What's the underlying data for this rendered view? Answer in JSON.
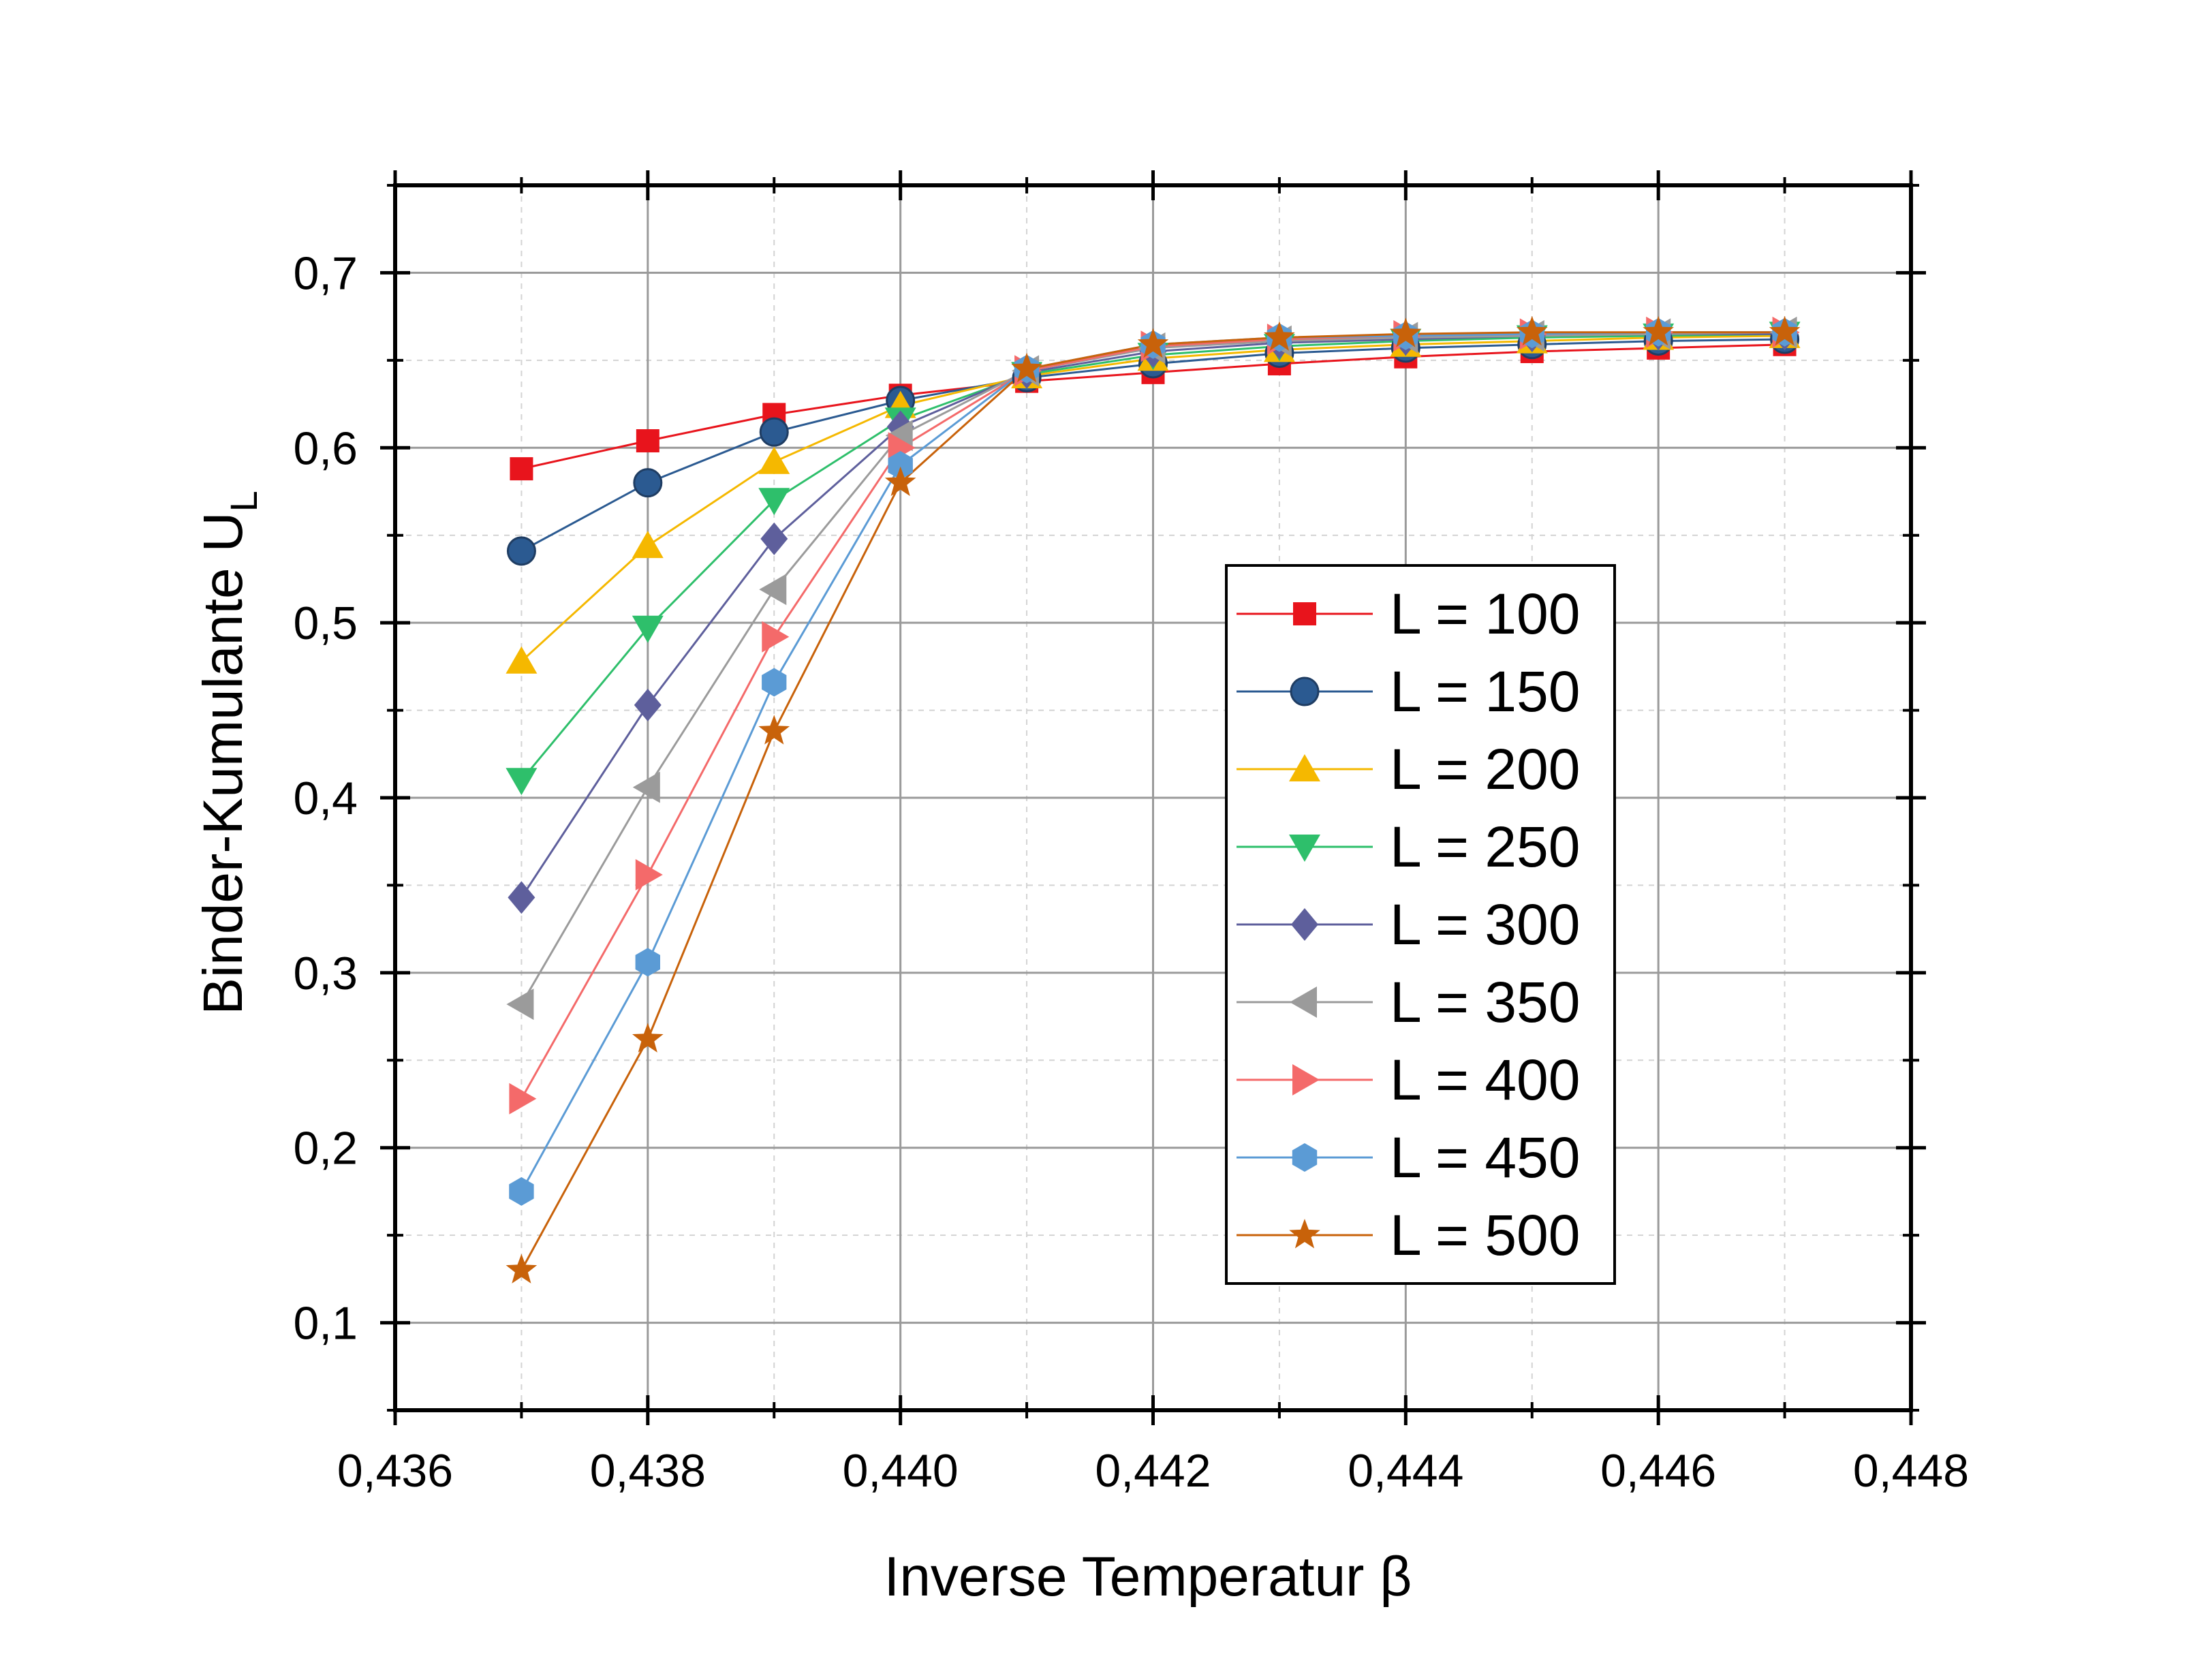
{
  "chart_data": {
    "type": "line",
    "xlabel": "Inverse Temperatur β",
    "ylabel": "Binder-Kumulante U",
    "ylabel_subscript": "L",
    "xlim": [
      0.436,
      0.448
    ],
    "ylim": [
      0.05,
      0.75
    ],
    "xticks": [
      0.436,
      0.438,
      0.44,
      0.442,
      0.444,
      0.446,
      0.448
    ],
    "xtick_labels": [
      "0,436",
      "0,438",
      "0,440",
      "0,442",
      "0,444",
      "0,446",
      "0,448"
    ],
    "yticks": [
      0.1,
      0.2,
      0.3,
      0.4,
      0.5,
      0.6,
      0.7
    ],
    "ytick_labels": [
      "0,1",
      "0,2",
      "0,3",
      "0,4",
      "0,5",
      "0,6",
      "0,7"
    ],
    "grid": true,
    "legend_position": "right-center",
    "x": [
      0.437,
      0.438,
      0.439,
      0.44,
      0.441,
      0.442,
      0.443,
      0.444,
      0.445,
      0.446,
      0.447
    ],
    "series": [
      {
        "name": "L = 100",
        "color": "#e8141c",
        "marker": "square",
        "values": [
          0.588,
          0.604,
          0.619,
          0.63,
          0.638,
          0.643,
          0.648,
          0.652,
          0.655,
          0.657,
          0.659
        ]
      },
      {
        "name": "L = 150",
        "color": "#2b5a91",
        "marker": "circle",
        "values": [
          0.541,
          0.58,
          0.609,
          0.627,
          0.64,
          0.648,
          0.654,
          0.657,
          0.659,
          0.661,
          0.662
        ]
      },
      {
        "name": "L = 200",
        "color": "#f5b800",
        "marker": "triangle-up",
        "values": [
          0.478,
          0.544,
          0.592,
          0.624,
          0.641,
          0.651,
          0.656,
          0.659,
          0.661,
          0.663,
          0.664
        ]
      },
      {
        "name": "L = 250",
        "color": "#2ebf6b",
        "marker": "triangle-down",
        "values": [
          0.41,
          0.497,
          0.57,
          0.616,
          0.642,
          0.653,
          0.658,
          0.661,
          0.663,
          0.664,
          0.665
        ]
      },
      {
        "name": "L = 300",
        "color": "#5e5f9c",
        "marker": "diamond",
        "values": [
          0.343,
          0.453,
          0.548,
          0.612,
          0.643,
          0.655,
          0.66,
          0.662,
          0.664,
          0.665,
          0.665
        ]
      },
      {
        "name": "L = 350",
        "color": "#9b9b9b",
        "marker": "triangle-left",
        "values": [
          0.282,
          0.406,
          0.519,
          0.607,
          0.644,
          0.657,
          0.661,
          0.663,
          0.664,
          0.665,
          0.666
        ]
      },
      {
        "name": "L = 400",
        "color": "#f46a6a",
        "marker": "triangle-right",
        "values": [
          0.228,
          0.356,
          0.492,
          0.6,
          0.644,
          0.658,
          0.662,
          0.664,
          0.665,
          0.666,
          0.666
        ]
      },
      {
        "name": "L = 450",
        "color": "#5b9bd5",
        "marker": "hexagon",
        "values": [
          0.175,
          0.306,
          0.466,
          0.59,
          0.645,
          0.659,
          0.663,
          0.664,
          0.665,
          0.666,
          0.666
        ]
      },
      {
        "name": "L = 500",
        "color": "#c8620a",
        "marker": "star",
        "values": [
          0.13,
          0.262,
          0.438,
          0.58,
          0.645,
          0.659,
          0.663,
          0.665,
          0.666,
          0.666,
          0.666
        ]
      }
    ]
  }
}
